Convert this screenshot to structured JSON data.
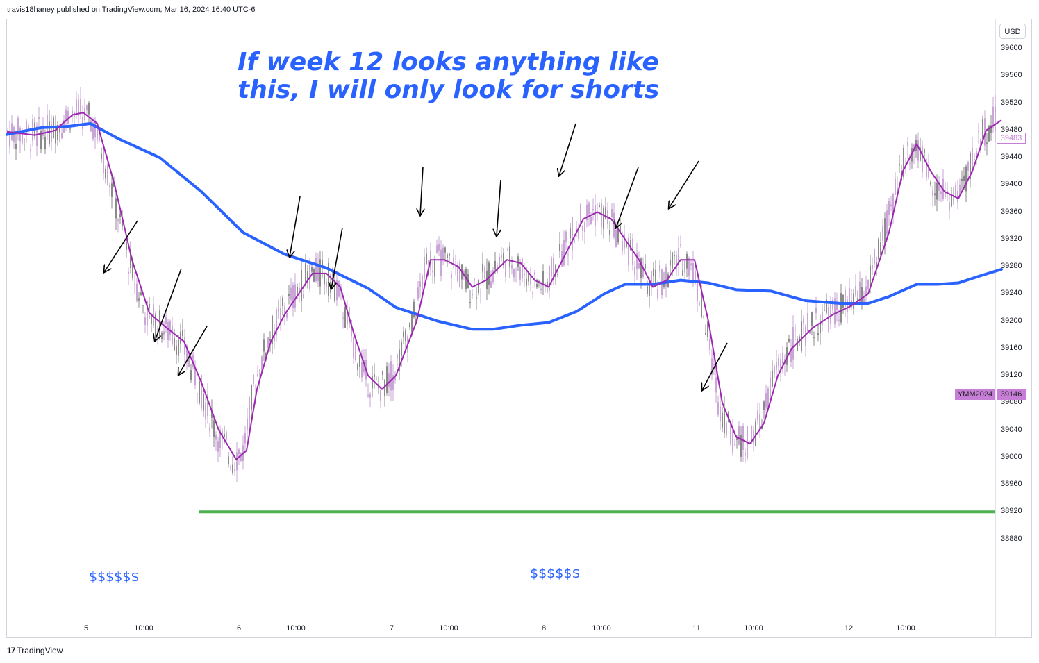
{
  "header": {
    "published": "travis18haney published on TradingView.com, Mar 16, 2024 16:40 UTC-6"
  },
  "footer": {
    "brand": "TradingView",
    "logo": "tradingview-logo"
  },
  "annotation": {
    "line1": "If week 12 looks anything like",
    "line2": "this,  I will only look for shorts"
  },
  "dollar_labels": [
    "$$$$$$",
    "$$$$$$"
  ],
  "axis": {
    "currency": "USD"
  },
  "badges": {
    "symbol": "YMM2024",
    "price": "39146",
    "last": "39483"
  },
  "colors": {
    "candles": "#c9a6d6",
    "candle_dark": "#8a8a8a",
    "fast_ma": "#9c27b0",
    "slow_ma": "#2962ff",
    "support": "#4caf50",
    "annotation": "#2962ff"
  },
  "chart_data": {
    "type": "line",
    "symbol": "YMM2024",
    "ylim": [
      38840,
      39640
    ],
    "y_ticks": [
      39600,
      39560,
      39520,
      39480,
      39440,
      39400,
      39360,
      39320,
      39280,
      39240,
      39200,
      39160,
      39120,
      39080,
      39040,
      39000,
      38960,
      38920,
      38880
    ],
    "x_ticks": [
      "5",
      "10:00",
      "6",
      "10:00",
      "7",
      "10:00",
      "8",
      "10:00",
      "11",
      "10:00",
      "12",
      "10:00"
    ],
    "current_price": 39146,
    "last_price": 39483,
    "support_level": 38920,
    "series": [
      {
        "values": [
          [
            0,
            39478
          ],
          [
            40,
            39473
          ],
          [
            70,
            39480
          ],
          [
            80,
            39490
          ],
          [
            95,
            39503
          ],
          [
            110,
            39506
          ],
          [
            130,
            39490
          ],
          [
            155,
            39400
          ],
          [
            180,
            39290
          ],
          [
            205,
            39212
          ],
          [
            230,
            39190
          ],
          [
            255,
            39170
          ],
          [
            280,
            39110
          ],
          [
            305,
            39040
          ],
          [
            330,
            38997
          ],
          [
            345,
            39010
          ],
          [
            360,
            39100
          ],
          [
            380,
            39170
          ],
          [
            400,
            39210
          ],
          [
            420,
            39240
          ],
          [
            440,
            39270
          ],
          [
            460,
            39270
          ],
          [
            480,
            39250
          ],
          [
            500,
            39180
          ],
          [
            520,
            39120
          ],
          [
            540,
            39100
          ],
          [
            560,
            39120
          ],
          [
            590,
            39200
          ],
          [
            610,
            39290
          ],
          [
            630,
            39290
          ],
          [
            650,
            39280
          ],
          [
            670,
            39250
          ],
          [
            690,
            39260
          ],
          [
            720,
            39290
          ],
          [
            740,
            39285
          ],
          [
            760,
            39260
          ],
          [
            780,
            39250
          ],
          [
            800,
            39290
          ],
          [
            830,
            39350
          ],
          [
            850,
            39360
          ],
          [
            870,
            39350
          ],
          [
            890,
            39320
          ],
          [
            910,
            39290
          ],
          [
            930,
            39250
          ],
          [
            950,
            39260
          ],
          [
            970,
            39290
          ],
          [
            990,
            39290
          ],
          [
            1010,
            39200
          ],
          [
            1030,
            39080
          ],
          [
            1050,
            39030
          ],
          [
            1070,
            39020
          ],
          [
            1090,
            39050
          ],
          [
            1110,
            39120
          ],
          [
            1130,
            39160
          ],
          [
            1160,
            39190
          ],
          [
            1190,
            39210
          ],
          [
            1215,
            39222
          ],
          [
            1240,
            39240
          ],
          [
            1270,
            39330
          ],
          [
            1290,
            39420
          ],
          [
            1310,
            39460
          ],
          [
            1330,
            39420
          ],
          [
            1350,
            39390
          ],
          [
            1370,
            39380
          ],
          [
            1390,
            39420
          ],
          [
            1410,
            39480
          ],
          [
            1432,
            39495
          ]
        ]
      },
      {
        "values": [
          [
            0,
            39474
          ],
          [
            50,
            39484
          ],
          [
            90,
            39486
          ],
          [
            120,
            39490
          ],
          [
            160,
            39468
          ],
          [
            220,
            39440
          ],
          [
            280,
            39390
          ],
          [
            340,
            39330
          ],
          [
            400,
            39298
          ],
          [
            460,
            39278
          ],
          [
            520,
            39248
          ],
          [
            560,
            39220
          ],
          [
            620,
            39200
          ],
          [
            670,
            39188
          ],
          [
            700,
            39188
          ],
          [
            740,
            39194
          ],
          [
            780,
            39198
          ],
          [
            820,
            39214
          ],
          [
            860,
            39240
          ],
          [
            890,
            39254
          ],
          [
            930,
            39254
          ],
          [
            970,
            39260
          ],
          [
            1010,
            39256
          ],
          [
            1050,
            39246
          ],
          [
            1100,
            39244
          ],
          [
            1150,
            39230
          ],
          [
            1200,
            39226
          ],
          [
            1240,
            39226
          ],
          [
            1270,
            39236
          ],
          [
            1310,
            39254
          ],
          [
            1340,
            39254
          ],
          [
            1370,
            39256
          ],
          [
            1400,
            39266
          ],
          [
            1432,
            39276
          ]
        ]
      }
    ]
  }
}
